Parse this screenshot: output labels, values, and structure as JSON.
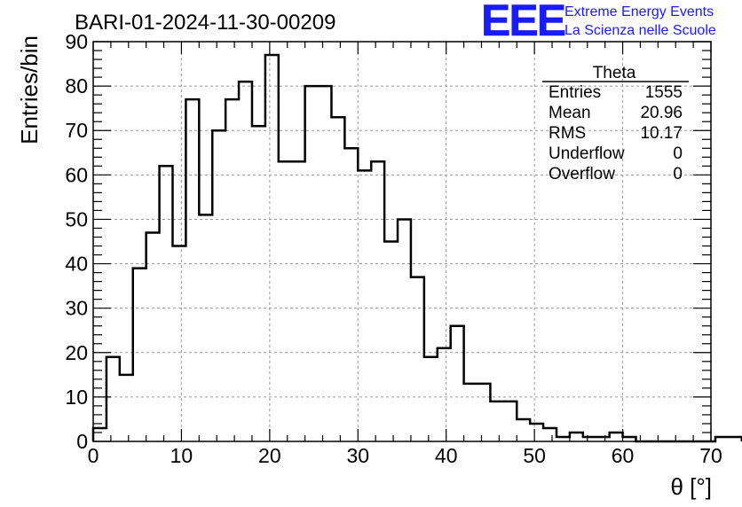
{
  "chart_data": {
    "type": "bar",
    "title": "BARI-01-2024-11-30-00209",
    "xlabel": "θ [°]",
    "ylabel": "Entries/bin",
    "xlim": [
      0,
      70
    ],
    "ylim": [
      0,
      90
    ],
    "x_ticks": [
      "0",
      "10",
      "20",
      "30",
      "40",
      "50",
      "60",
      "70"
    ],
    "y_ticks": [
      "0",
      "10",
      "20",
      "30",
      "40",
      "50",
      "60",
      "70",
      "80",
      "90"
    ],
    "grid": true,
    "bin_width": 1.5,
    "values": [
      3,
      19,
      15,
      39,
      47,
      62,
      44,
      77,
      51,
      70,
      77,
      81,
      71,
      87,
      63,
      63,
      80,
      80,
      73,
      66,
      61,
      63,
      45,
      50,
      37,
      19,
      21,
      26,
      13,
      13,
      9,
      9,
      5,
      4,
      3,
      1,
      2,
      1,
      1,
      2,
      1,
      0,
      0,
      0,
      0,
      0,
      0,
      1,
      1
    ],
    "stats_box": {
      "name": "Theta",
      "rows": [
        {
          "label": "Entries",
          "value": "1555"
        },
        {
          "label": "Mean",
          "value": "20.96"
        },
        {
          "label": "RMS",
          "value": "10.17"
        },
        {
          "label": "Underflow",
          "value": "0"
        },
        {
          "label": "Overflow",
          "value": "0"
        }
      ]
    }
  },
  "logo": {
    "mark": "EEE",
    "line1": "Extreme Energy Events",
    "line2": "La Scienza nelle Scuole",
    "color": "#1a1aff"
  },
  "colors": {
    "line": "#000000",
    "grid": "#999999"
  }
}
